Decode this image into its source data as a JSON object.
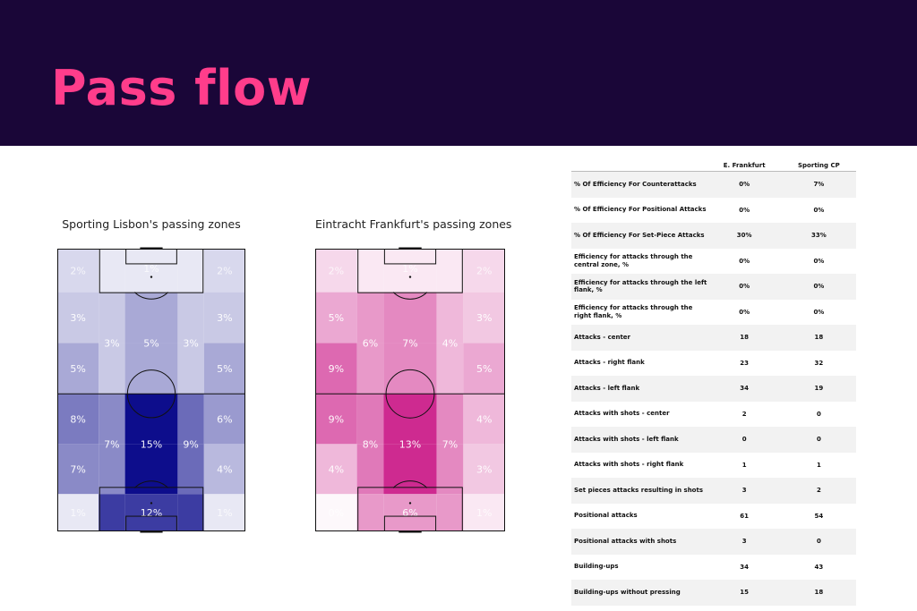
{
  "header": {
    "title": "Pass flow",
    "bg_color": "#1a0638",
    "title_color": "#ff3d8b"
  },
  "chart_data": [
    {
      "type": "heatmap",
      "title": "Sporting Lisbon's passing zones",
      "color": "#0d0d8c",
      "rows_top_to_bottom": [
        {
          "cells": [
            {
              "label": "2%",
              "value": 2
            },
            {
              "label": "1%",
              "value": 1
            },
            {
              "label": "2%",
              "value": 2
            }
          ],
          "cols": [
            0,
            1,
            1,
            1,
            2
          ]
        },
        {
          "cells": []
        }
      ],
      "grid": [
        [
          {
            "v": 2,
            "t": "2%"
          },
          {
            "v": 1,
            "t": "1%"
          },
          {
            "v": 1,
            "t": ""
          },
          {
            "v": 1,
            "t": ""
          },
          {
            "v": 2,
            "t": "2%"
          }
        ],
        [
          {
            "v": 3,
            "t": "3%"
          },
          {
            "v": 3,
            "t": "3%"
          },
          {
            "v": 5,
            "t": "5%"
          },
          {
            "v": 3,
            "t": "3%"
          },
          {
            "v": 3,
            "t": "3%"
          }
        ],
        [
          {
            "v": 5,
            "t": "5%"
          },
          {
            "v": 3,
            "t": ""
          },
          {
            "v": 5,
            "t": ""
          },
          {
            "v": 3,
            "t": ""
          },
          {
            "v": 5,
            "t": "5%"
          }
        ],
        [
          {
            "v": 8,
            "t": "8%"
          },
          {
            "v": 7,
            "t": "7%"
          },
          {
            "v": 15,
            "t": "15%"
          },
          {
            "v": 9,
            "t": "9%"
          },
          {
            "v": 6,
            "t": "6%"
          }
        ],
        [
          {
            "v": 7,
            "t": "7%"
          },
          {
            "v": 7,
            "t": ""
          },
          {
            "v": 15,
            "t": ""
          },
          {
            "v": 9,
            "t": ""
          },
          {
            "v": 4,
            "t": "4%"
          }
        ],
        [
          {
            "v": 1,
            "t": "1%"
          },
          {
            "v": 12,
            "t": "12%"
          },
          {
            "v": 12,
            "t": ""
          },
          {
            "v": 12,
            "t": ""
          },
          {
            "v": 1,
            "t": "1%"
          }
        ]
      ]
    },
    {
      "type": "heatmap",
      "title": "Eintracht Frankfurt's passing zones",
      "color": "#c70a7f",
      "grid": [
        [
          {
            "v": 2,
            "t": "2%"
          },
          {
            "v": 1,
            "t": "1%"
          },
          {
            "v": 1,
            "t": ""
          },
          {
            "v": 1,
            "t": ""
          },
          {
            "v": 2,
            "t": "2%"
          }
        ],
        [
          {
            "v": 5,
            "t": "5%"
          },
          {
            "v": 6,
            "t": "6%"
          },
          {
            "v": 7,
            "t": "7%"
          },
          {
            "v": 4,
            "t": "4%"
          },
          {
            "v": 3,
            "t": "3%"
          }
        ],
        [
          {
            "v": 9,
            "t": "9%"
          },
          {
            "v": 6,
            "t": ""
          },
          {
            "v": 7,
            "t": ""
          },
          {
            "v": 4,
            "t": ""
          },
          {
            "v": 5,
            "t": "5%"
          }
        ],
        [
          {
            "v": 9,
            "t": "9%"
          },
          {
            "v": 8,
            "t": "8%"
          },
          {
            "v": 13,
            "t": "13%"
          },
          {
            "v": 7,
            "t": "7%"
          },
          {
            "v": 4,
            "t": "4%"
          }
        ],
        [
          {
            "v": 4,
            "t": "4%"
          },
          {
            "v": 8,
            "t": ""
          },
          {
            "v": 13,
            "t": ""
          },
          {
            "v": 7,
            "t": ""
          },
          {
            "v": 3,
            "t": "3%"
          }
        ],
        [
          {
            "v": 0,
            "t": "0%"
          },
          {
            "v": 6,
            "t": "6%"
          },
          {
            "v": 6,
            "t": ""
          },
          {
            "v": 6,
            "t": ""
          },
          {
            "v": 1,
            "t": "1%"
          }
        ]
      ]
    }
  ],
  "table": {
    "columns": [
      "",
      "E. Frankfurt",
      "Sporting CP"
    ],
    "rows": [
      {
        "label": "% Of Efficiency For Counterattacks",
        "a": "0%",
        "b": "7%"
      },
      {
        "label": "% Of Efficiency For Positional Attacks",
        "a": "0%",
        "b": "0%"
      },
      {
        "label": "% Of Efficiency For Set-Piece Attacks",
        "a": "30%",
        "b": "33%"
      },
      {
        "label": "Efficiency for attacks through the central zone, %",
        "a": "0%",
        "b": "0%"
      },
      {
        "label": "Efficiency for attacks through the left flank, %",
        "a": "0%",
        "b": "0%"
      },
      {
        "label": "Efficiency for attacks through the right flank, %",
        "a": "0%",
        "b": "0%"
      },
      {
        "label": "Attacks - center",
        "a": "18",
        "b": "18"
      },
      {
        "label": "Attacks - right flank",
        "a": "23",
        "b": "32"
      },
      {
        "label": "Attacks - left flank",
        "a": "34",
        "b": "19"
      },
      {
        "label": "Attacks with shots - center",
        "a": "2",
        "b": "0"
      },
      {
        "label": "Attacks with shots - left flank",
        "a": "0",
        "b": "0"
      },
      {
        "label": "Attacks with shots - right flank",
        "a": "1",
        "b": "1"
      },
      {
        "label": "Set pieces attacks resulting in shots",
        "a": "3",
        "b": "2"
      },
      {
        "label": "Positional attacks",
        "a": "61",
        "b": "54"
      },
      {
        "label": "Positional attacks with shots",
        "a": "3",
        "b": "0"
      },
      {
        "label": "Building-ups",
        "a": "34",
        "b": "43"
      },
      {
        "label": "Building-ups without pressing",
        "a": "15",
        "b": "18"
      }
    ]
  }
}
